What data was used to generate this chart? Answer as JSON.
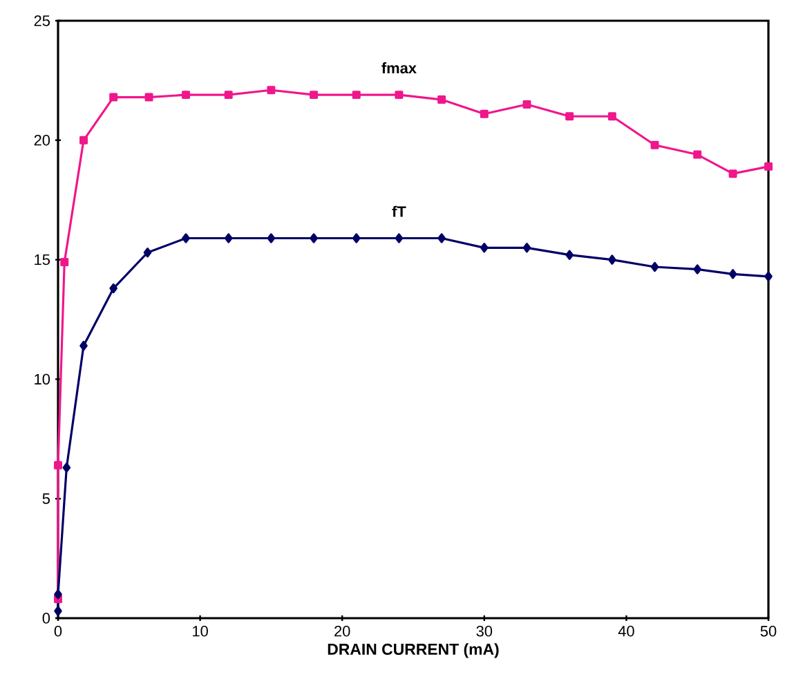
{
  "chart_data": {
    "type": "line",
    "xlabel": "DRAIN CURRENT (mA)",
    "xlim": [
      0,
      50
    ],
    "xticks": [
      0,
      10,
      20,
      30,
      40,
      50
    ],
    "ylim": [
      0,
      25
    ],
    "yticks": [
      0,
      5,
      10,
      15,
      20,
      25
    ],
    "grid": false,
    "line_style": "solid",
    "series": [
      {
        "name": "fmax",
        "color": "#f0168c",
        "marker": "square",
        "x": [
          0,
          0,
          0.45,
          1.8,
          3.9,
          6.4,
          9,
          12,
          15,
          18,
          21,
          24,
          27,
          30,
          33,
          36,
          39,
          42,
          45,
          47.5,
          50
        ],
        "values": [
          0.8,
          6.4,
          14.9,
          20.0,
          21.8,
          21.8,
          21.9,
          21.9,
          22.1,
          21.9,
          21.9,
          21.9,
          21.7,
          21.1,
          21.5,
          21.0,
          21.0,
          19.8,
          19.4,
          18.6,
          18.9
        ]
      },
      {
        "name": "fT",
        "color": "#000066",
        "marker": "diamond",
        "x": [
          0,
          0,
          0.6,
          1.8,
          3.9,
          6.3,
          9,
          12,
          15,
          18,
          21,
          24,
          27,
          30,
          33,
          36,
          39,
          42,
          45,
          47.5,
          50
        ],
        "values": [
          0.3,
          1.0,
          6.3,
          11.4,
          13.8,
          15.3,
          15.9,
          15.9,
          15.9,
          15.9,
          15.9,
          15.9,
          15.9,
          15.5,
          15.5,
          15.2,
          15.0,
          14.7,
          14.6,
          14.4,
          14.3
        ]
      }
    ]
  }
}
